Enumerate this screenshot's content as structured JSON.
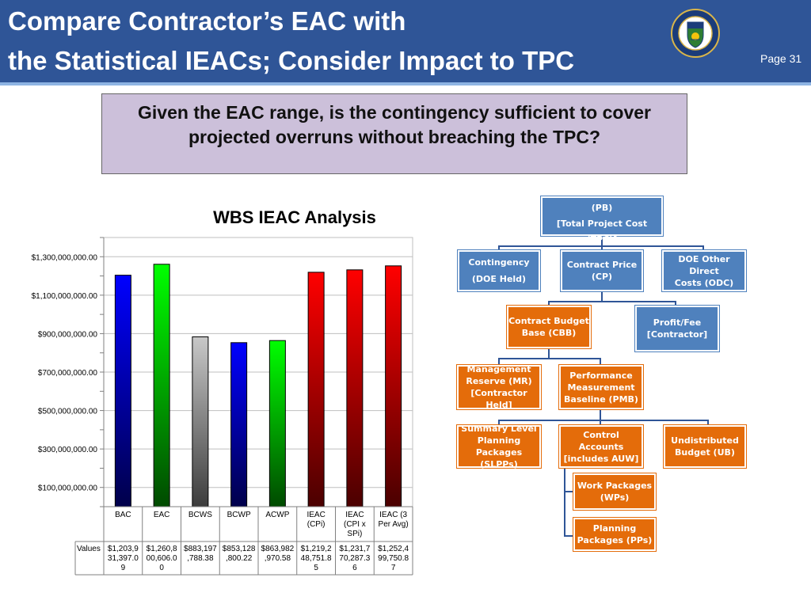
{
  "header": {
    "title_line1": "Compare Contractor’s EAC with",
    "title_line2": "the Statistical IEACs; Consider Impact to TPC",
    "page": "Page 31",
    "seal_icon": "doe-seal-icon"
  },
  "question": {
    "line1": "Given the EAC range, is the contingency sufficient to cover",
    "line2": "projected overruns without breaching the TPC?"
  },
  "chart_data": {
    "type": "bar",
    "title": "WBS IEAC Analysis",
    "categories": [
      "BAC",
      "EAC",
      "BCWS",
      "BCWP",
      "ACWP",
      "IEAC (CPi)",
      "IEAC (CPI x SPi)",
      "IEAC (3 Per Avg)"
    ],
    "category_lines": [
      [
        "BAC"
      ],
      [
        "EAC"
      ],
      [
        "BCWS"
      ],
      [
        "BCWP"
      ],
      [
        "ACWP"
      ],
      [
        "IEAC",
        "(CPi)"
      ],
      [
        "IEAC",
        "(CPI x",
        "SPi)"
      ],
      [
        "IEAC (3",
        "Per Avg)"
      ]
    ],
    "values": [
      1203931397.09,
      1260800606.0,
      883197788.38,
      853128800.22,
      863982970.58,
      1219248751.85,
      1231770287.36,
      1252499750.87
    ],
    "table_row_label": "Values",
    "table_values": [
      [
        "$1,203,9",
        "31,397.0",
        "9"
      ],
      [
        "$1,260,8",
        "00,606.0",
        "0"
      ],
      [
        "$883,197",
        ",788.38"
      ],
      [
        "$853,128",
        ",800.22"
      ],
      [
        "$863,982",
        ",970.58"
      ],
      [
        "$1,219,2",
        "48,751.8",
        "5"
      ],
      [
        "$1,231,7",
        "70,287.3",
        "6"
      ],
      [
        "$1,252,4",
        "99,750.8",
        "7"
      ]
    ],
    "ylim": [
      0,
      1400000000
    ],
    "yticks": [
      100000000,
      300000000,
      500000000,
      700000000,
      900000000,
      1100000000,
      1300000000
    ],
    "ytick_labels": [
      "$100,000,000.00",
      "$300,000,000.00",
      "$500,000,000.00",
      "$700,000,000.00",
      "$900,000,000.00",
      "$1,100,000,000.00",
      "$1,300,000,000.00"
    ],
    "colors": [
      [
        "#0000ff",
        "#00004a"
      ],
      [
        "#00ff00",
        "#004a00"
      ],
      [
        "#c8c8c8",
        "#3c3c3c"
      ],
      [
        "#0000ff",
        "#00004a"
      ],
      [
        "#00ff00",
        "#004a00"
      ],
      [
        "#ff0000",
        "#4a0000"
      ],
      [
        "#ff0000",
        "#4a0000"
      ],
      [
        "#ff0000",
        "#4a0000"
      ]
    ],
    "grid": true,
    "legend": "none"
  },
  "org_chart": {
    "pb_line1": "Performance Baseline (PB)",
    "pb_line2": "[Total Project Cost (TPC)]",
    "contingency_line1": "Contingency",
    "contingency_line2": "(DOE Held)",
    "cp_line1": "Contract Price",
    "cp_line2": "(CP)",
    "odc_line1": "DOE Other Direct",
    "odc_line2": "Costs (ODC)",
    "cbb_line1": "Contract Budget",
    "cbb_line2": "Base (CBB)",
    "fee_line1": "Profit/Fee",
    "fee_line2": "[Contractor]",
    "mr_line1": "Management",
    "mr_line2": "Reserve  (MR)",
    "mr_line3": "[Contractor Held]",
    "pmb_line1": "Performance",
    "pmb_line2": "Measurement",
    "pmb_line3": "Baseline (PMB)",
    "slpp_line1": "Summary Level",
    "slpp_line2": "Planning",
    "slpp_line3": "Packages (SLPPs)",
    "ca_line1": "Control Accounts",
    "ca_line2": "[includes AUW]",
    "ub_line1": "Undistributed",
    "ub_line2": "Budget (UB)",
    "wp_line1": "Work Packages",
    "wp_line2": "(WPs)",
    "pp_line1": "Planning",
    "pp_line2": "Packages (PPs)",
    "colors": {
      "blue": "#4f81bd",
      "orange": "#e46c0a",
      "connector": "#2f5597"
    }
  }
}
